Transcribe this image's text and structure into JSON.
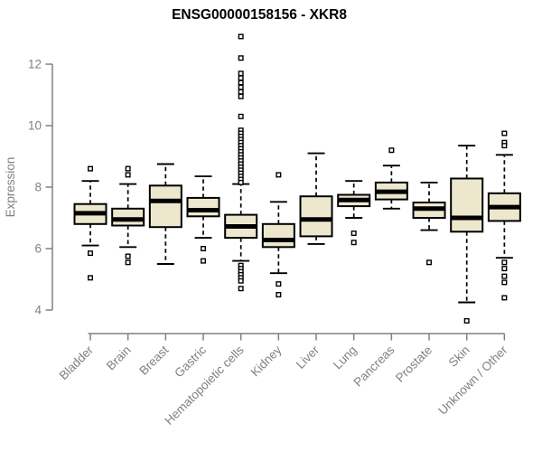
{
  "title": "ENSG00000158156 - XKR8",
  "chart_data": {
    "type": "boxplot",
    "title": "ENSG00000158156 - XKR8",
    "xlabel": "",
    "ylabel": "Expression",
    "ylim": [
      4,
      12
    ],
    "yticks": [
      4,
      6,
      8,
      10,
      12
    ],
    "grid": false,
    "legend": "none",
    "categories": [
      "Bladder",
      "Brain",
      "Breast",
      "Gastric",
      "Hematopoietic cells",
      "Kidney",
      "Liver",
      "Lung",
      "Pancreas",
      "Prostate",
      "Skin",
      "Unknown / Other"
    ],
    "series": [
      {
        "name": "Bladder",
        "whisker_low": 6.1,
        "q1": 6.8,
        "median": 7.15,
        "q3": 7.45,
        "whisker_high": 8.2,
        "outliers": [
          8.6,
          5.85,
          5.05
        ]
      },
      {
        "name": "Brain",
        "whisker_low": 6.05,
        "q1": 6.75,
        "median": 6.95,
        "q3": 7.3,
        "whisker_high": 8.1,
        "outliers": [
          8.6,
          8.4,
          5.75,
          5.55
        ]
      },
      {
        "name": "Breast",
        "whisker_low": 5.5,
        "q1": 6.7,
        "median": 7.55,
        "q3": 8.05,
        "whisker_high": 8.75,
        "outliers": []
      },
      {
        "name": "Gastric",
        "whisker_low": 6.35,
        "q1": 7.05,
        "median": 7.25,
        "q3": 7.65,
        "whisker_high": 8.35,
        "outliers": [
          6.0,
          5.6
        ]
      },
      {
        "name": "Hematopoietic cells",
        "whisker_low": 5.6,
        "q1": 6.35,
        "median": 6.72,
        "q3": 7.1,
        "whisker_high": 8.1,
        "outliers": [
          12.9,
          12.2,
          11.7,
          11.55,
          11.4,
          11.25,
          11.1,
          10.95,
          10.3,
          9.85,
          9.75,
          9.65,
          9.55,
          9.45,
          9.35,
          9.25,
          9.15,
          9.05,
          8.95,
          8.85,
          8.75,
          8.65,
          8.55,
          8.45,
          8.35,
          8.25,
          8.15,
          5.45,
          5.35,
          5.25,
          5.15,
          5.05,
          4.95,
          4.7
        ]
      },
      {
        "name": "Kidney",
        "whisker_low": 5.2,
        "q1": 6.05,
        "median": 6.28,
        "q3": 6.8,
        "whisker_high": 7.52,
        "outliers": [
          8.4,
          4.85,
          4.5
        ]
      },
      {
        "name": "Liver",
        "whisker_low": 6.15,
        "q1": 6.4,
        "median": 6.95,
        "q3": 7.7,
        "whisker_high": 9.1,
        "outliers": []
      },
      {
        "name": "Lung",
        "whisker_low": 7.0,
        "q1": 7.38,
        "median": 7.58,
        "q3": 7.75,
        "whisker_high": 8.2,
        "outliers": [
          6.5,
          6.2
        ]
      },
      {
        "name": "Pancreas",
        "whisker_low": 7.3,
        "q1": 7.6,
        "median": 7.85,
        "q3": 8.15,
        "whisker_high": 8.7,
        "outliers": [
          9.2
        ]
      },
      {
        "name": "Prostate",
        "whisker_low": 6.6,
        "q1": 7.0,
        "median": 7.3,
        "q3": 7.5,
        "whisker_high": 8.15,
        "outliers": [
          5.55
        ]
      },
      {
        "name": "Skin",
        "whisker_low": 4.25,
        "q1": 6.55,
        "median": 7.0,
        "q3": 8.28,
        "whisker_high": 9.35,
        "outliers": [
          3.65
        ]
      },
      {
        "name": "Unknown / Other",
        "whisker_low": 5.7,
        "q1": 6.9,
        "median": 7.35,
        "q3": 7.8,
        "whisker_high": 9.05,
        "outliers": [
          9.75,
          9.45,
          9.35,
          5.55,
          5.35,
          5.1,
          4.9,
          4.4
        ]
      }
    ]
  },
  "colors": {
    "box_fill": "#EDE7CD",
    "box_stroke": "#000000",
    "median": "#000000",
    "whisker": "#000000",
    "outlier_stroke": "#000000",
    "outlier_fill": "#FFFFFF",
    "axis": "#808080",
    "tick_label": "#808080",
    "title": "#000000",
    "background": "#FFFFFF"
  }
}
